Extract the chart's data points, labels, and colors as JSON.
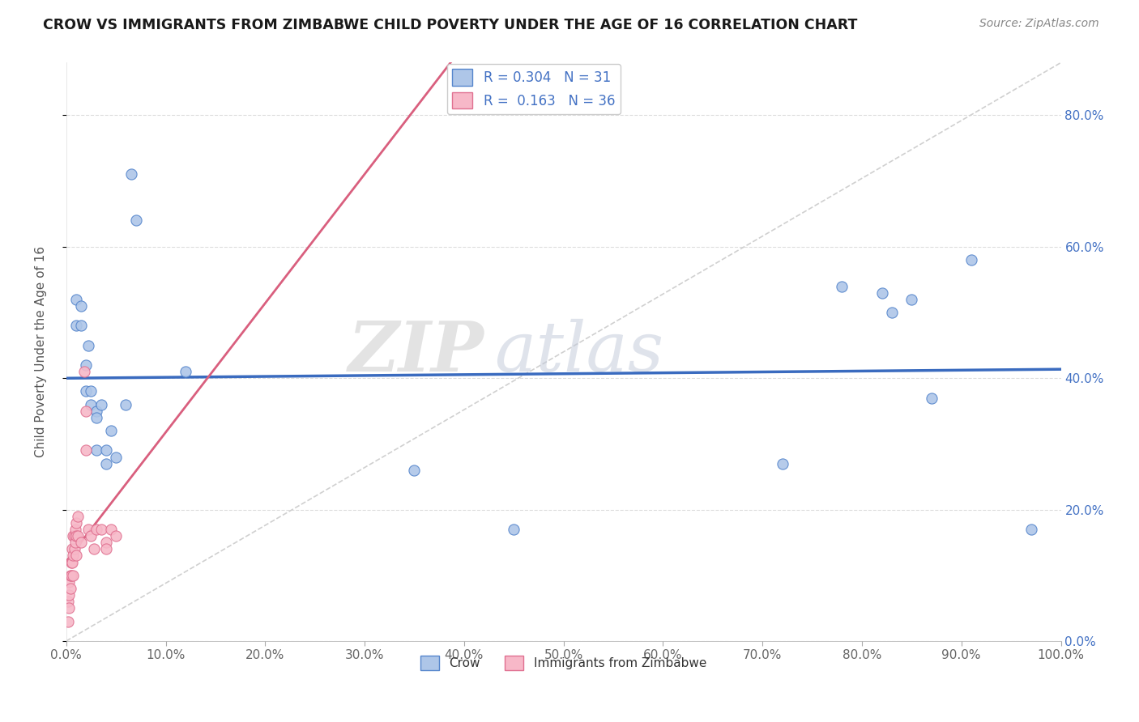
{
  "title": "CROW VS IMMIGRANTS FROM ZIMBABWE CHILD POVERTY UNDER THE AGE OF 16 CORRELATION CHART",
  "source": "Source: ZipAtlas.com",
  "ylabel": "Child Poverty Under the Age of 16",
  "crow_R": 0.304,
  "crow_N": 31,
  "zimbabwe_R": 0.163,
  "zimbabwe_N": 36,
  "crow_color": "#aec6e8",
  "crow_line_color": "#3a6bbf",
  "crow_edge_color": "#5585cc",
  "zimbabwe_color": "#f7b8c8",
  "zimbabwe_line_color": "#d95f7e",
  "zimbabwe_edge_color": "#e07090",
  "dashed_line_color": "#d0d0d0",
  "crow_x": [
    0.01,
    0.01,
    0.015,
    0.015,
    0.02,
    0.02,
    0.022,
    0.025,
    0.025,
    0.03,
    0.03,
    0.03,
    0.035,
    0.04,
    0.04,
    0.045,
    0.05,
    0.06,
    0.065,
    0.07,
    0.12,
    0.35,
    0.45,
    0.72,
    0.78,
    0.82,
    0.83,
    0.85,
    0.87,
    0.91,
    0.97
  ],
  "crow_y": [
    0.52,
    0.48,
    0.51,
    0.48,
    0.42,
    0.38,
    0.45,
    0.38,
    0.36,
    0.35,
    0.34,
    0.29,
    0.36,
    0.29,
    0.27,
    0.32,
    0.28,
    0.36,
    0.71,
    0.64,
    0.41,
    0.26,
    0.17,
    0.27,
    0.54,
    0.53,
    0.5,
    0.52,
    0.37,
    0.58,
    0.17
  ],
  "zimbabwe_x": [
    0.002,
    0.002,
    0.003,
    0.003,
    0.003,
    0.004,
    0.004,
    0.005,
    0.005,
    0.006,
    0.006,
    0.007,
    0.007,
    0.007,
    0.008,
    0.008,
    0.009,
    0.009,
    0.01,
    0.01,
    0.01,
    0.012,
    0.012,
    0.015,
    0.018,
    0.02,
    0.02,
    0.022,
    0.025,
    0.028,
    0.03,
    0.035,
    0.04,
    0.04,
    0.045,
    0.05
  ],
  "zimbabwe_y": [
    0.03,
    0.06,
    0.05,
    0.07,
    0.09,
    0.08,
    0.1,
    0.1,
    0.12,
    0.12,
    0.14,
    0.1,
    0.13,
    0.16,
    0.14,
    0.16,
    0.15,
    0.17,
    0.13,
    0.16,
    0.18,
    0.16,
    0.19,
    0.15,
    0.41,
    0.29,
    0.35,
    0.17,
    0.16,
    0.14,
    0.17,
    0.17,
    0.15,
    0.14,
    0.17,
    0.16
  ],
  "xlim": [
    0.0,
    1.0
  ],
  "ylim": [
    0.0,
    0.88
  ],
  "xticks": [
    0.0,
    0.1,
    0.2,
    0.3,
    0.4,
    0.5,
    0.6,
    0.7,
    0.8,
    0.9,
    1.0
  ],
  "xticklabels": [
    "0.0%",
    "10.0%",
    "20.0%",
    "30.0%",
    "40.0%",
    "50.0%",
    "60.0%",
    "70.0%",
    "80.0%",
    "90.0%",
    "100.0%"
  ],
  "yticks": [
    0.0,
    0.2,
    0.4,
    0.6,
    0.8
  ],
  "yticklabels_right": [
    "0.0%",
    "20.0%",
    "40.0%",
    "60.0%",
    "80.0%"
  ],
  "marker_size": 90,
  "legend_labels": [
    "Crow",
    "Immigrants from Zimbabwe"
  ],
  "watermark_zip": "ZIP",
  "watermark_atlas": "atlas",
  "background_color": "#ffffff"
}
